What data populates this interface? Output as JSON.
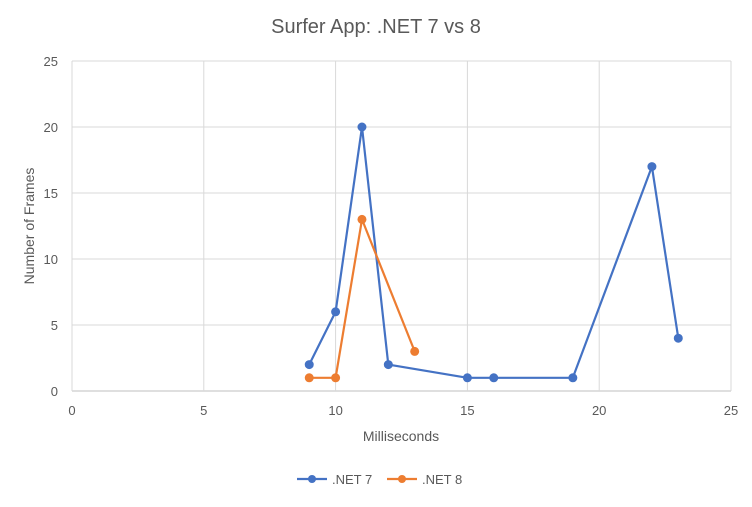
{
  "chart_data": {
    "type": "scatter",
    "title": "Surfer App: .NET 7 vs 8",
    "xlabel": "Milliseconds",
    "ylabel": "Number of Frames",
    "xlim": [
      0,
      25
    ],
    "ylim": [
      0,
      25
    ],
    "xticks": [
      0,
      5,
      10,
      15,
      20,
      25
    ],
    "yticks": [
      0,
      5,
      10,
      15,
      20,
      25
    ],
    "grid": true,
    "legend_position": "bottom",
    "series": [
      {
        "name": ".NET 7",
        "color": "#4472C4",
        "points": [
          [
            9,
            2
          ],
          [
            10,
            6
          ],
          [
            11,
            20
          ],
          [
            12,
            2
          ],
          [
            15,
            1
          ],
          [
            16,
            1
          ],
          [
            19,
            1
          ],
          [
            22,
            17
          ],
          [
            23,
            4
          ]
        ]
      },
      {
        "name": ".NET 8",
        "color": "#ED7D31",
        "points": [
          [
            9,
            1
          ],
          [
            10,
            1
          ],
          [
            11,
            13
          ],
          [
            13,
            3
          ]
        ]
      }
    ]
  }
}
